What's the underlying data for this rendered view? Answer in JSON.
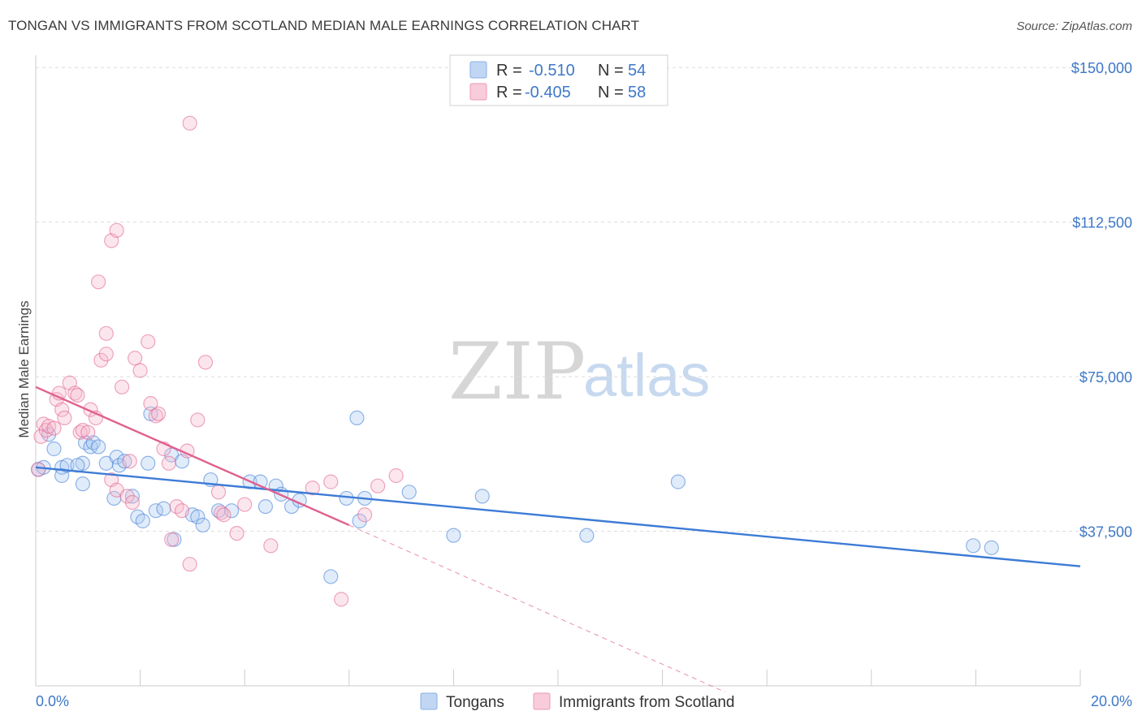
{
  "header": {
    "title": "TONGAN VS IMMIGRANTS FROM SCOTLAND MEDIAN MALE EARNINGS CORRELATION CHART",
    "source": "Source: ZipAtlas.com"
  },
  "watermark": {
    "zip": "ZIP",
    "atlas": "atlas"
  },
  "colors": {
    "blue": "#3d7bd6",
    "blue_fill": "#a8c8f0",
    "pink": "#e0608e",
    "pink_fill": "#f5b8cc",
    "grid": "#dcdcdc",
    "axis_text": "#3e78c8"
  },
  "legend": {
    "rows": [
      {
        "r_label": "R =",
        "r_value": "-0.510",
        "n_label": "N =",
        "n_value": "54"
      },
      {
        "r_label": "R =",
        "r_value": "-0.405",
        "n_label": "N =",
        "n_value": "58"
      }
    ]
  },
  "chart_data": {
    "type": "scatter",
    "title": "TONGAN VS IMMIGRANTS FROM SCOTLAND MEDIAN MALE EARNINGS CORRELATION CHART",
    "xlabel": "",
    "ylabel": "Median Male Earnings",
    "xlim": [
      0,
      20
    ],
    "ylim": [
      0,
      153000
    ],
    "x_tick_labels": [
      "0.0%",
      "20.0%"
    ],
    "y_ticks": [
      37500,
      75000,
      112500,
      150000
    ],
    "y_tick_labels": [
      "$37,500",
      "$75,000",
      "$112,500",
      "$150,000"
    ],
    "grid": true,
    "legend_position": "top-center",
    "series": [
      {
        "name": "Tongans",
        "color": "#3d7bd6",
        "r": "-0.510",
        "n": "54",
        "points": [
          [
            0.05,
            52500
          ],
          [
            0.15,
            53000
          ],
          [
            0.25,
            61000
          ],
          [
            0.35,
            57500
          ],
          [
            0.5,
            53000
          ],
          [
            0.5,
            51000
          ],
          [
            0.9,
            54000
          ],
          [
            0.9,
            49000
          ],
          [
            0.6,
            53500
          ],
          [
            0.8,
            53500
          ],
          [
            0.95,
            59000
          ],
          [
            1.05,
            58000
          ],
          [
            1.1,
            59000
          ],
          [
            1.2,
            58000
          ],
          [
            1.35,
            54000
          ],
          [
            1.55,
            55500
          ],
          [
            1.6,
            53500
          ],
          [
            1.7,
            54500
          ],
          [
            1.5,
            45500
          ],
          [
            1.85,
            46000
          ],
          [
            1.95,
            41000
          ],
          [
            2.05,
            40000
          ],
          [
            2.15,
            54000
          ],
          [
            2.2,
            66000
          ],
          [
            2.3,
            42500
          ],
          [
            2.45,
            43000
          ],
          [
            2.6,
            56000
          ],
          [
            2.65,
            35500
          ],
          [
            2.8,
            54500
          ],
          [
            3.0,
            41500
          ],
          [
            3.1,
            41000
          ],
          [
            3.2,
            39000
          ],
          [
            3.35,
            50000
          ],
          [
            3.5,
            42500
          ],
          [
            3.75,
            42500
          ],
          [
            4.1,
            49500
          ],
          [
            4.4,
            43500
          ],
          [
            4.3,
            49500
          ],
          [
            4.6,
            48500
          ],
          [
            4.7,
            46500
          ],
          [
            4.9,
            43500
          ],
          [
            5.05,
            45000
          ],
          [
            5.65,
            26500
          ],
          [
            5.95,
            45500
          ],
          [
            6.2,
            40000
          ],
          [
            6.15,
            65000
          ],
          [
            6.3,
            45500
          ],
          [
            7.15,
            47000
          ],
          [
            8.0,
            36500
          ],
          [
            8.55,
            46000
          ],
          [
            10.55,
            36500
          ],
          [
            12.3,
            49500
          ],
          [
            17.95,
            34000
          ],
          [
            18.3,
            33500
          ]
        ],
        "trend": [
          [
            0,
            53000
          ],
          [
            20,
            29000
          ]
        ]
      },
      {
        "name": "Immigrants from Scotland",
        "color": "#e0608e",
        "r": "-0.405",
        "n": "58",
        "points": [
          [
            0.05,
            52500
          ],
          [
            0.1,
            60500
          ],
          [
            0.15,
            63500
          ],
          [
            0.2,
            62000
          ],
          [
            0.25,
            63000
          ],
          [
            0.35,
            62500
          ],
          [
            0.4,
            69500
          ],
          [
            0.45,
            71000
          ],
          [
            0.5,
            67000
          ],
          [
            0.55,
            65000
          ],
          [
            0.65,
            73500
          ],
          [
            0.75,
            71000
          ],
          [
            0.8,
            70500
          ],
          [
            0.85,
            61500
          ],
          [
            0.9,
            62000
          ],
          [
            1.0,
            61500
          ],
          [
            1.05,
            67000
          ],
          [
            1.15,
            65000
          ],
          [
            1.25,
            79000
          ],
          [
            1.35,
            80500
          ],
          [
            1.2,
            98000
          ],
          [
            1.35,
            85500
          ],
          [
            1.45,
            108000
          ],
          [
            1.55,
            110500
          ],
          [
            1.45,
            50000
          ],
          [
            1.55,
            47500
          ],
          [
            1.65,
            72500
          ],
          [
            1.75,
            46000
          ],
          [
            1.85,
            44500
          ],
          [
            1.9,
            79500
          ],
          [
            2.0,
            76500
          ],
          [
            2.15,
            83500
          ],
          [
            2.2,
            68500
          ],
          [
            2.3,
            65500
          ],
          [
            2.35,
            66000
          ],
          [
            2.45,
            57500
          ],
          [
            2.55,
            54000
          ],
          [
            2.6,
            35500
          ],
          [
            2.7,
            43500
          ],
          [
            2.8,
            42500
          ],
          [
            2.9,
            57000
          ],
          [
            2.95,
            29500
          ],
          [
            2.95,
            136500
          ],
          [
            3.1,
            64500
          ],
          [
            3.25,
            78500
          ],
          [
            3.5,
            47000
          ],
          [
            3.55,
            42000
          ],
          [
            3.6,
            41500
          ],
          [
            3.85,
            37000
          ],
          [
            4.0,
            44000
          ],
          [
            4.5,
            34000
          ],
          [
            5.3,
            48000
          ],
          [
            5.65,
            49500
          ],
          [
            5.85,
            21000
          ],
          [
            6.3,
            41500
          ],
          [
            6.55,
            48500
          ],
          [
            6.9,
            51000
          ],
          [
            1.8,
            54500
          ]
        ],
        "trend": [
          [
            0,
            72500
          ],
          [
            6.0,
            39000
          ]
        ],
        "trend_dashed": [
          [
            6.0,
            39000
          ],
          [
            13.2,
            -1500
          ]
        ]
      }
    ]
  },
  "bottom_legend": {
    "items": [
      {
        "label": "Tongans"
      },
      {
        "label": "Immigrants from Scotland"
      }
    ]
  }
}
